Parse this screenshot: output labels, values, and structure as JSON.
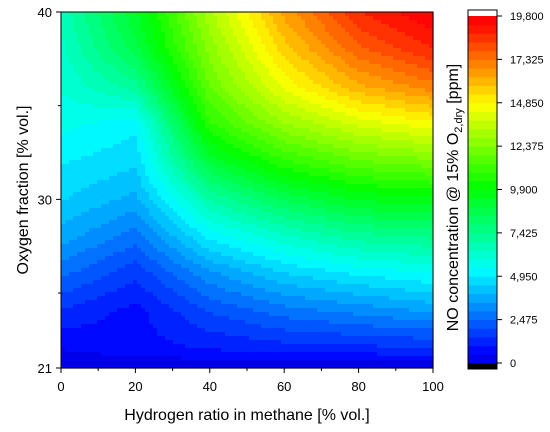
{
  "chart_data": {
    "type": "heatmap",
    "plot": "filled contour",
    "xlabel": "Hydrogen ratio in methane [% vol.]",
    "ylabel": "Oxygen fraction [% vol.]",
    "colorbar_label": "NO concentration @ 15% O",
    "colorbar_label_sub": "2,dry",
    "colorbar_label_unit": " [ppm]",
    "x_ticks": [
      0,
      20,
      40,
      60,
      80,
      100
    ],
    "x_tick_labels": [
      "0",
      "20",
      "40",
      "60",
      "80",
      "100"
    ],
    "xlim": [
      0,
      100
    ],
    "y_ticks": [
      21,
      30,
      40
    ],
    "y_tick_labels": [
      "21",
      "30",
      "40"
    ],
    "ylim": [
      21,
      40
    ],
    "x": [
      0,
      20,
      40,
      60,
      80,
      100
    ],
    "y": [
      21,
      22,
      24,
      26,
      28,
      30,
      32,
      34,
      36,
      38,
      40
    ],
    "z": [
      [
        0,
        0,
        0,
        0,
        0,
        0
      ],
      [
        500,
        800,
        1000,
        1200,
        1300,
        1400
      ],
      [
        1400,
        800,
        2000,
        2700,
        3100,
        3500
      ],
      [
        2600,
        1600,
        3300,
        4400,
        5000,
        5400
      ],
      [
        3700,
        2700,
        5100,
        6300,
        7200,
        7500
      ],
      [
        4500,
        3800,
        7000,
        8500,
        9500,
        9800
      ],
      [
        5000,
        4600,
        9000,
        10800,
        11800,
        12200
      ],
      [
        5600,
        5100,
        10800,
        12800,
        14000,
        14700
      ],
      [
        6000,
        7200,
        11900,
        14500,
        16200,
        17100
      ],
      [
        6300,
        8700,
        12600,
        15600,
        17700,
        18800
      ],
      [
        6600,
        9300,
        13200,
        16500,
        18800,
        19800
      ]
    ],
    "colorbar_ticks": [
      0,
      2475,
      4950,
      7425,
      9900,
      12375,
      14850,
      17325,
      19800
    ],
    "colorbar_tick_labels": [
      "0",
      "2,475",
      "4,950",
      "7,425",
      "9,900",
      "12,375",
      "14,850",
      "17,325",
      "19,800"
    ],
    "levels": 40,
    "level_step": 495,
    "colormap": [
      "#000000",
      "#0000ff",
      "#00ffff",
      "#00ff00",
      "#ffff00",
      "#ff0000",
      "#ffffff"
    ],
    "grid": false,
    "legend": "colorbar-right"
  }
}
